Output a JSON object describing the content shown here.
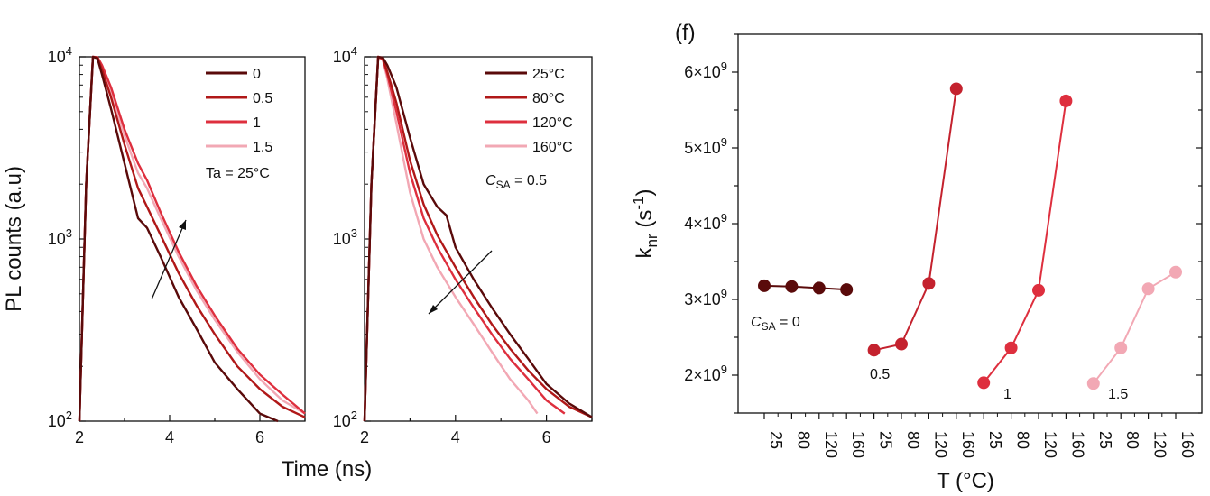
{
  "chart_data": [
    {
      "type": "line",
      "panel": "left",
      "yscale": "log",
      "xlim": [
        2,
        7
      ],
      "ylim": [
        100,
        10000
      ],
      "xticks": [
        2,
        4,
        6
      ],
      "yticks": [
        100,
        1000,
        10000
      ],
      "ytick_labels": [
        "10^2",
        "10^3",
        "10^4"
      ],
      "ylabel": "PL counts (a.u)",
      "annotation": "Ta = 25°C",
      "arrow": "up-right",
      "series": [
        {
          "name": "0",
          "color": "#5a0a0a",
          "x": [
            2.0,
            2.15,
            2.3,
            2.4,
            2.5,
            2.7,
            3.0,
            3.3,
            3.5,
            3.8,
            4.2,
            4.6,
            5.0,
            5.5,
            6.0,
            6.4
          ],
          "y": [
            100,
            2000,
            10000,
            9800,
            8000,
            5200,
            2600,
            1300,
            1150,
            800,
            480,
            320,
            210,
            150,
            110,
            100
          ]
        },
        {
          "name": "0.5",
          "color": "#b01818",
          "x": [
            2.0,
            2.15,
            2.3,
            2.4,
            2.5,
            2.7,
            3.0,
            3.3,
            3.5,
            3.8,
            4.2,
            4.6,
            5.0,
            5.5,
            6.0,
            6.5,
            7.0
          ],
          "y": [
            100,
            2000,
            10000,
            9900,
            8500,
            6000,
            3300,
            1900,
            1500,
            1050,
            650,
            430,
            300,
            200,
            150,
            120,
            105
          ]
        },
        {
          "name": "1",
          "color": "#de2f3e",
          "x": [
            2.0,
            2.15,
            2.3,
            2.4,
            2.5,
            2.7,
            3.0,
            3.3,
            3.5,
            3.8,
            4.2,
            4.6,
            5.0,
            5.5,
            6.0,
            6.5,
            7.0
          ],
          "y": [
            100,
            2000,
            10000,
            9950,
            9000,
            6800,
            4000,
            2600,
            2100,
            1400,
            850,
            550,
            380,
            250,
            180,
            140,
            110
          ]
        },
        {
          "name": "1.5",
          "color": "#f2a8b4",
          "x": [
            2.0,
            2.15,
            2.3,
            2.4,
            2.5,
            2.7,
            3.0,
            3.3,
            3.5,
            3.8,
            4.2,
            4.6,
            5.0,
            5.5,
            6.0,
            6.5,
            7.0
          ],
          "y": [
            100,
            2000,
            10000,
            9900,
            8800,
            6500,
            3700,
            2300,
            1900,
            1300,
            800,
            520,
            360,
            240,
            170,
            130,
            110
          ]
        }
      ]
    },
    {
      "type": "line",
      "panel": "middle",
      "yscale": "log",
      "xlim": [
        2,
        7
      ],
      "ylim": [
        100,
        10000
      ],
      "xticks": [
        2,
        4,
        6
      ],
      "yticks": [
        100,
        1000,
        10000
      ],
      "ytick_labels": [
        "10^2",
        "10^3",
        "10^4"
      ],
      "xlabel": "Time (ns)",
      "annotation": "C_SA = 0.5",
      "arrow": "down-left",
      "series": [
        {
          "name": "25°C",
          "color": "#5a0a0a",
          "x": [
            2.0,
            2.15,
            2.3,
            2.4,
            2.5,
            2.7,
            3.0,
            3.3,
            3.6,
            3.8,
            4.0,
            4.4,
            4.8,
            5.2,
            5.6,
            6.0,
            6.5,
            7.0
          ],
          "y": [
            100,
            2000,
            10000,
            9900,
            9000,
            6800,
            3600,
            2000,
            1500,
            1350,
            900,
            600,
            420,
            300,
            220,
            160,
            125,
            105
          ]
        },
        {
          "name": "80°C",
          "color": "#b01818",
          "x": [
            2.0,
            2.15,
            2.3,
            2.4,
            2.5,
            2.7,
            3.0,
            3.3,
            3.6,
            4.0,
            4.4,
            4.8,
            5.2,
            5.6,
            6.0,
            6.5,
            7.0
          ],
          "y": [
            100,
            2000,
            10000,
            9800,
            8300,
            5600,
            2700,
            1550,
            1050,
            700,
            480,
            340,
            250,
            190,
            150,
            120,
            105
          ]
        },
        {
          "name": "120°C",
          "color": "#de2f3e",
          "x": [
            2.0,
            2.15,
            2.3,
            2.4,
            2.5,
            2.7,
            3.0,
            3.3,
            3.6,
            4.0,
            4.4,
            4.8,
            5.2,
            5.6,
            6.0,
            6.4
          ],
          "y": [
            100,
            2000,
            10000,
            9700,
            8000,
            5000,
            2300,
            1300,
            900,
            600,
            420,
            300,
            220,
            170,
            130,
            110
          ]
        },
        {
          "name": "160°C",
          "color": "#f2a8b4",
          "x": [
            2.0,
            2.15,
            2.3,
            2.4,
            2.5,
            2.7,
            3.0,
            3.3,
            3.6,
            4.0,
            4.4,
            4.8,
            5.2,
            5.6,
            5.8
          ],
          "y": [
            100,
            2000,
            10000,
            9600,
            7600,
            4300,
            1800,
            1000,
            700,
            480,
            340,
            240,
            170,
            130,
            110
          ]
        }
      ]
    },
    {
      "type": "scatter",
      "panel": "right",
      "label": "(f)",
      "ylim": [
        1500000000,
        6500000000
      ],
      "yticks": [
        2000000000,
        3000000000,
        4000000000,
        5000000000,
        6000000000
      ],
      "ytick_labels": [
        "2×10^9",
        "3×10^9",
        "4×10^9",
        "5×10^9",
        "6×10^9"
      ],
      "xlabel": "T (°C)",
      "ylabel": "k_nr (s^-1)",
      "categories": [
        "25",
        "80",
        "120",
        "160",
        "25",
        "80",
        "120",
        "160",
        "25",
        "80",
        "120",
        "160",
        "25",
        "80",
        "120",
        "160"
      ],
      "series": [
        {
          "name": "C_SA = 0",
          "group_label": "C_SA = 0",
          "color": "#5a0a0a",
          "values": [
            3180000000,
            3170000000,
            3150000000,
            3130000000
          ]
        },
        {
          "name": "0.5",
          "group_label": "0.5",
          "color": "#c4222e",
          "values": [
            2330000000,
            2410000000,
            3210000000,
            5780000000
          ]
        },
        {
          "name": "1",
          "group_label": "1",
          "color": "#de2f3e",
          "values": [
            1900000000,
            2360000000,
            3120000000,
            5620000000
          ]
        },
        {
          "name": "1.5",
          "group_label": "1.5",
          "color": "#f2a8b4",
          "values": [
            1890000000,
            2360000000,
            3140000000,
            3360000000
          ]
        }
      ]
    }
  ]
}
